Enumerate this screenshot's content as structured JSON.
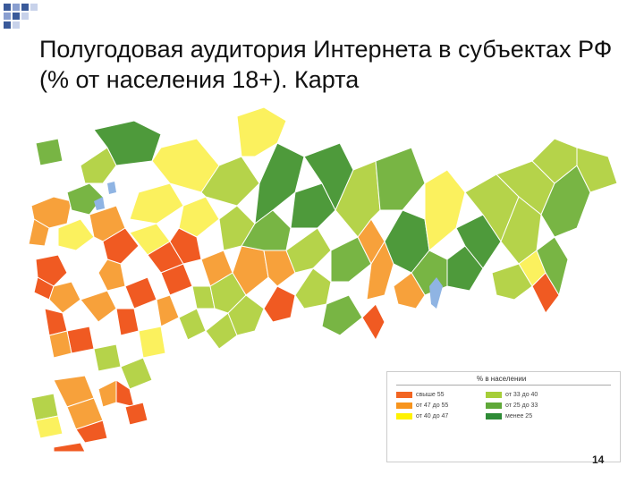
{
  "title": "Полугодовая аудитория Интернета в субъектах РФ (% от населения 18+). Карта",
  "legend": {
    "title": "% в населении",
    "items": [
      {
        "label": "свыше 55",
        "color": "#f26522"
      },
      {
        "label": "от 47 до 55",
        "color": "#f7941d"
      },
      {
        "label": "от 40 до 47",
        "color": "#fff200"
      },
      {
        "label": "от 33 до 40",
        "color": "#a6ce39"
      },
      {
        "label": "от 25 до 33",
        "color": "#5fa838"
      },
      {
        "label": "менее 25",
        "color": "#2e8b36"
      }
    ]
  },
  "colors": {
    "high": "#f05a22",
    "mid_high": "#f7a13b",
    "mid": "#fbf15e",
    "mid_low": "#b5d34a",
    "low": "#78b544",
    "lowest": "#4e9a3b",
    "water": "#8fb4e3",
    "border": "#ffffff"
  },
  "page_number": "14"
}
